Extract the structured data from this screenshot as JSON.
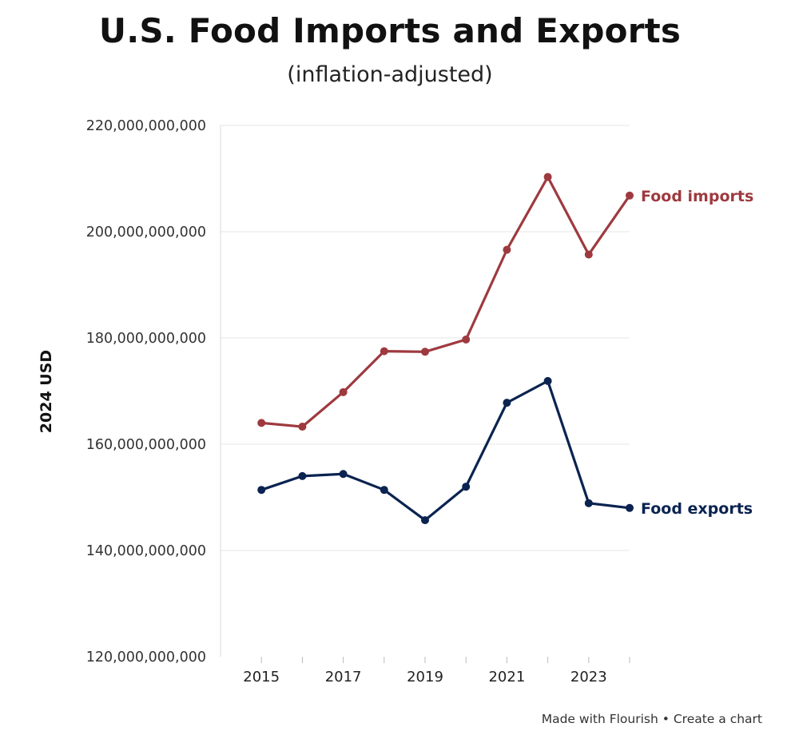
{
  "header": {
    "title": "U.S. Food Imports and Exports",
    "subtitle": "(inflation-adjusted)"
  },
  "footer": {
    "made_with": "Made with Flourish",
    "separator": "•",
    "create": "Create a chart"
  },
  "chart_data": {
    "type": "line",
    "title": "U.S. Food Imports and Exports",
    "subtitle": "(inflation-adjusted)",
    "xlabel": "",
    "ylabel": "2024 USD",
    "x": [
      2015,
      2016,
      2017,
      2018,
      2019,
      2020,
      2021,
      2022,
      2023,
      2024
    ],
    "x_ticks": [
      "2015",
      "2017",
      "2019",
      "2021",
      "2023"
    ],
    "y_ticks": [
      "120,000,000,000",
      "140,000,000,000",
      "160,000,000,000",
      "180,000,000,000",
      "200,000,000,000",
      "220,000,000,000"
    ],
    "ylim": [
      120000000000,
      220000000000
    ],
    "xlim": [
      2014,
      2024
    ],
    "grid": true,
    "legend": "inline labels at line ends",
    "series": [
      {
        "name": "Food imports",
        "color": "#9e3a3f",
        "values": [
          164000000000,
          163300000000,
          169800000000,
          177500000000,
          177400000000,
          179700000000,
          196600000000,
          210300000000,
          195700000000,
          206800000000
        ]
      },
      {
        "name": "Food exports",
        "color": "#0b2350",
        "values": [
          151400000000,
          154000000000,
          154400000000,
          151400000000,
          145700000000,
          152000000000,
          167800000000,
          171900000000,
          148900000000,
          148000000000
        ]
      }
    ]
  }
}
